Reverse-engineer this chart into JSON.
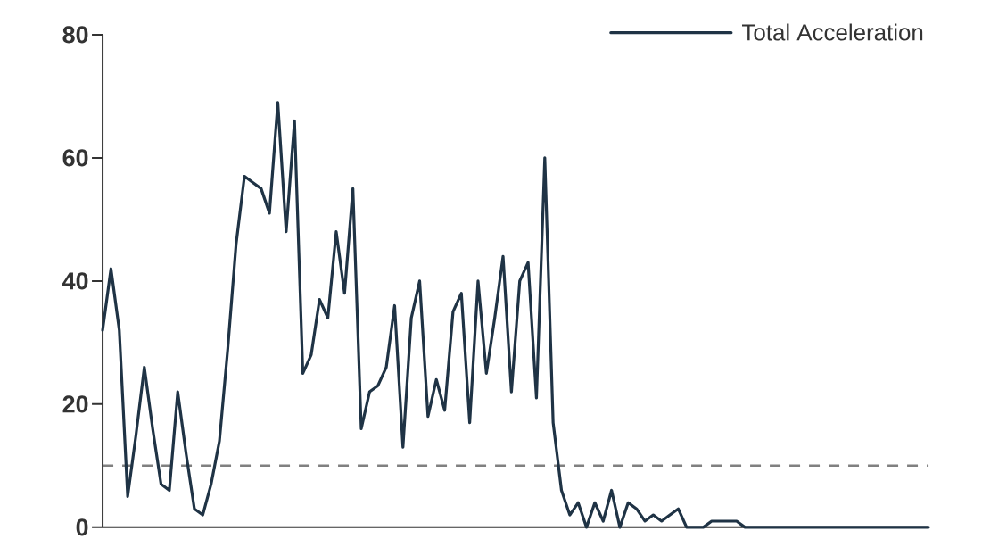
{
  "chart_data": {
    "type": "line",
    "categories": [
      null,
      null,
      null,
      null,
      null,
      null,
      null,
      null,
      null,
      null,
      null,
      null,
      null,
      null,
      null,
      null,
      null,
      null,
      null,
      null,
      null,
      null,
      null,
      null,
      null,
      null,
      null,
      null,
      null,
      null,
      null,
      null,
      null,
      null,
      null,
      null,
      null,
      null,
      null,
      null,
      null,
      null,
      null,
      null,
      null,
      null,
      null,
      null,
      null,
      null,
      null,
      null,
      null,
      null,
      null,
      null,
      null,
      null,
      null,
      null,
      null,
      null,
      null,
      null,
      null,
      null,
      null,
      null,
      null,
      null,
      null,
      null,
      null,
      null,
      null,
      null,
      null,
      null,
      null,
      null,
      null,
      null,
      null,
      null,
      null,
      null,
      null,
      null,
      null,
      null,
      null,
      null,
      null,
      null,
      null,
      null,
      null,
      null,
      null,
      null
    ],
    "series": [
      {
        "name": "Total Acceleration",
        "color": "#1f3345",
        "values": [
          32,
          42,
          32,
          5,
          15,
          26,
          16,
          7,
          6,
          22,
          12,
          3,
          2,
          7,
          14,
          29,
          46,
          57,
          56,
          55,
          51,
          69,
          48,
          66,
          25,
          28,
          37,
          34,
          48,
          38,
          55,
          16,
          22,
          23,
          26,
          36,
          13,
          34,
          40,
          18,
          24,
          19,
          35,
          38,
          17,
          40,
          25,
          34,
          44,
          22,
          40,
          43,
          21,
          60,
          17,
          6,
          2,
          4,
          0,
          4,
          1,
          6,
          0,
          4,
          3,
          1,
          2,
          1,
          2,
          3,
          0,
          0,
          0,
          1,
          1,
          1,
          1,
          0,
          0,
          0,
          0,
          0,
          0,
          0,
          0,
          0,
          0,
          0,
          0,
          0,
          0,
          0,
          0,
          0,
          0,
          0,
          0,
          0,
          0,
          0
        ]
      }
    ],
    "ylim": [
      0,
      80
    ],
    "yticks": [
      0,
      20,
      40,
      60,
      80
    ],
    "ref_lines": [
      {
        "axis": "y",
        "value": 10,
        "color": "#808080",
        "line_style": "dashed"
      }
    ],
    "legend": "top right",
    "tick_labels": "y"
  }
}
